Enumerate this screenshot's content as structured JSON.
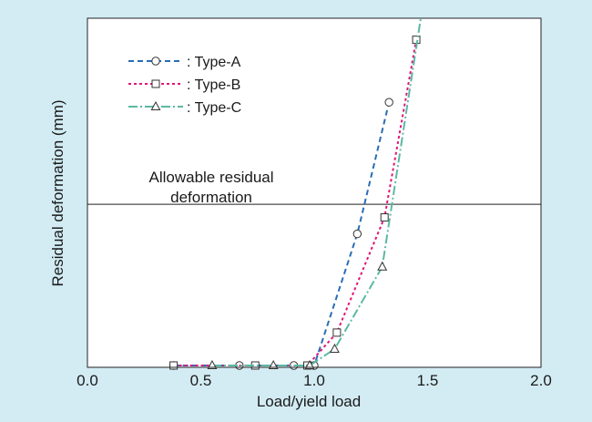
{
  "chart_data": {
    "type": "line",
    "title": "",
    "xlabel": "Load/yield load",
    "ylabel": "Residual deformation  (mm)",
    "xlim": [
      0.0,
      2.0
    ],
    "ylim": [
      0,
      100
    ],
    "x_tick_labels": [
      "0.0",
      "0.5",
      "1.0",
      "1.5",
      "2.0"
    ],
    "x_tick_values": [
      0.0,
      0.5,
      1.0,
      1.5,
      2.0
    ],
    "y_tick_labels": [],
    "grid": false,
    "legend_position": "top-left",
    "reference_line": {
      "y": 49,
      "label_line1": "Allowable residual",
      "label_line2": "deformation"
    },
    "series": [
      {
        "name": "Type-A",
        "legend_label": ": Type-A",
        "color": "#2a6db5",
        "dash": "6,4",
        "marker": "circle",
        "x": [
          0.38,
          0.67,
          0.91,
          1.0,
          1.19,
          1.33
        ],
        "y": [
          0,
          0,
          0,
          0,
          40,
          80
        ]
      },
      {
        "name": "Type-B",
        "legend_label": ": Type-B",
        "color": "#e0157a",
        "dash": "3,3",
        "marker": "square",
        "x": [
          0.38,
          0.74,
          0.97,
          1.1,
          1.31,
          1.45
        ],
        "y": [
          0,
          0,
          0,
          10,
          45,
          99
        ]
      },
      {
        "name": "Type-C",
        "legend_label": ": Type-C",
        "color": "#5ab9a3",
        "dash": "10,3,2,3",
        "marker": "triangle",
        "x": [
          0.55,
          0.82,
          0.98,
          1.09,
          1.3,
          1.48
        ],
        "y": [
          0,
          0,
          0,
          5,
          30,
          110
        ]
      }
    ]
  }
}
